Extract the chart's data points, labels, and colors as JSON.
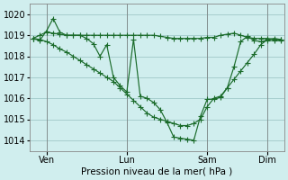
{
  "background_color": "#d0eeee",
  "grid_color": "#a0c8c8",
  "line_color": "#1a6b2a",
  "xlabel": "Pression niveau de la mer( hPa )",
  "ylim": [
    1013.5,
    1020.5
  ],
  "yticks": [
    1014,
    1015,
    1016,
    1017,
    1018,
    1019,
    1020
  ],
  "xtick_labels": [
    "Ven",
    "Lun",
    "Sam",
    "Dim"
  ],
  "xtick_positions": [
    2,
    14,
    26,
    35
  ],
  "total_points": 38,
  "line1_y": [
    1018.85,
    1019.0,
    1019.15,
    1019.1,
    1019.05,
    1019.0,
    1019.0,
    1019.0,
    1019.0,
    1019.0,
    1019.0,
    1019.0,
    1019.0,
    1019.0,
    1019.0,
    1019.0,
    1019.0,
    1019.0,
    1019.0,
    1018.95,
    1018.9,
    1018.85,
    1018.85,
    1018.85,
    1018.85,
    1018.85,
    1018.9,
    1018.9,
    1019.0,
    1019.05,
    1019.1,
    1019.0,
    1018.9,
    1018.85,
    1018.85,
    1018.85,
    1018.8,
    1018.8
  ],
  "line2_y": [
    1018.85,
    1018.8,
    1018.7,
    1018.55,
    1018.35,
    1018.2,
    1018.0,
    1017.8,
    1017.6,
    1017.4,
    1017.2,
    1017.0,
    1016.8,
    1016.5,
    1016.2,
    1015.9,
    1015.6,
    1015.3,
    1015.1,
    1015.0,
    1014.9,
    1014.8,
    1014.7,
    1014.7,
    1014.8,
    1015.0,
    1015.6,
    1016.0,
    1016.1,
    1016.5,
    1016.9,
    1017.3,
    1017.7,
    1018.1,
    1018.55,
    1018.8,
    1018.85,
    1018.8
  ],
  "line3_y": [
    1018.85,
    1018.75,
    1019.2,
    1019.8,
    1019.15,
    1019.0,
    1019.0,
    1019.0,
    1018.85,
    1018.6,
    1018.0,
    1018.55,
    1017.0,
    1016.6,
    1016.3,
    1018.8,
    1016.1,
    1016.0,
    1015.8,
    1015.45,
    1014.85,
    1014.15,
    1014.1,
    1014.05,
    1014.0,
    1015.15,
    1015.95,
    1015.95,
    1016.05,
    1016.5,
    1017.5,
    1018.7,
    1018.95,
    1018.75,
    1018.7,
    1018.75,
    1018.75,
    1018.75
  ]
}
